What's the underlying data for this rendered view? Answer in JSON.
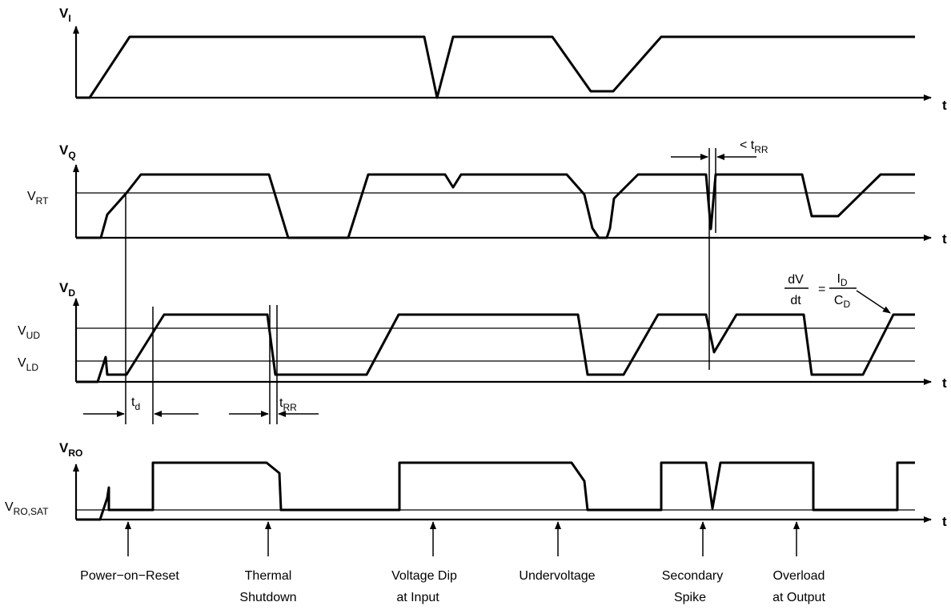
{
  "axes": {
    "vi": {
      "name": "V",
      "sub": "I"
    },
    "vq": {
      "name": "V",
      "sub": "Q"
    },
    "vd": {
      "name": "V",
      "sub": "D"
    },
    "vro": {
      "name": "V",
      "sub": "RO"
    },
    "t": "t"
  },
  "levels": {
    "vrt": {
      "name": "V",
      "sub": "RT"
    },
    "vud": {
      "name": "V",
      "sub": "UD"
    },
    "vld": {
      "name": "V",
      "sub": "LD"
    },
    "vrosat": {
      "name": "V",
      "sub": "RO,SAT"
    }
  },
  "timing": {
    "td": {
      "name": "t",
      "sub": "d"
    },
    "trr": {
      "name": "t",
      "sub": "RR"
    },
    "lt_trr": {
      "prefix": "< t",
      "sub": "RR"
    }
  },
  "formula": {
    "num_left": "dV",
    "den_left": "dt",
    "equals": "=",
    "num_right": {
      "name": "I",
      "sub": "D"
    },
    "den_right": {
      "name": "C",
      "sub": "D"
    }
  },
  "events": [
    {
      "line1": "Power−on−Reset",
      "line2": ""
    },
    {
      "line1": "Thermal",
      "line2": "Shutdown"
    },
    {
      "line1": "Voltage Dip",
      "line2": "at Input"
    },
    {
      "line1": "Undervoltage",
      "line2": ""
    },
    {
      "line1": "Secondary",
      "line2": "Spike"
    },
    {
      "line1": "Overload",
      "line2": "at Output"
    }
  ]
}
